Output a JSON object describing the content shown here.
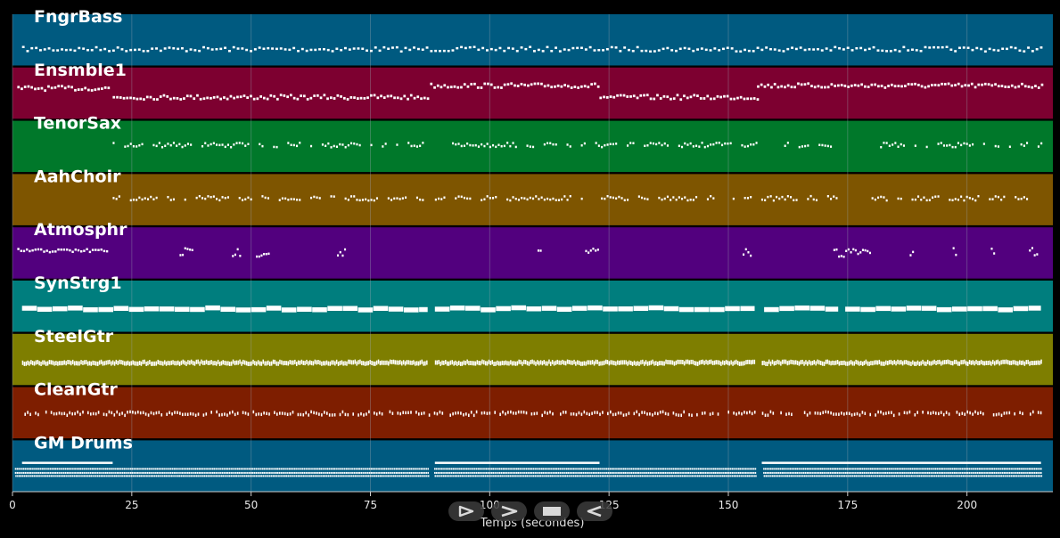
{
  "window": {
    "title": ""
  },
  "colors": {
    "background": "#000000",
    "note": "#ffffff",
    "grid": "#9aa6b2"
  },
  "tracks": [
    {
      "name": "FngrBass",
      "color": "#005a80",
      "pattern": "bass"
    },
    {
      "name": "Ensmble1",
      "color": "#7d0030",
      "pattern": "ensemble"
    },
    {
      "name": "TenorSax",
      "color": "#00782a",
      "pattern": "lead"
    },
    {
      "name": "AahChoir",
      "color": "#7e5500",
      "pattern": "lead"
    },
    {
      "name": "Atmosphr",
      "color": "#52007e",
      "pattern": "sparse"
    },
    {
      "name": "SynStrg1",
      "color": "#007e7e",
      "pattern": "pad"
    },
    {
      "name": "SteelGtr",
      "color": "#7e7e00",
      "pattern": "dense"
    },
    {
      "name": "CleanGtr",
      "color": "#7e1e00",
      "pattern": "dotted"
    },
    {
      "name": "GM Drums",
      "color": "#005a80",
      "pattern": "drums"
    }
  ],
  "x_axis": {
    "min": 0,
    "max": 218,
    "ticks": [
      0,
      25,
      50,
      75,
      100,
      125,
      150,
      175,
      200
    ],
    "label": "Temps (secondes)"
  },
  "transport": {
    "play_icon": "play-icon",
    "fast_forward_icon": "fast-forward-icon",
    "stop_icon": "stop-icon",
    "rewind_icon": "rewind-icon"
  }
}
